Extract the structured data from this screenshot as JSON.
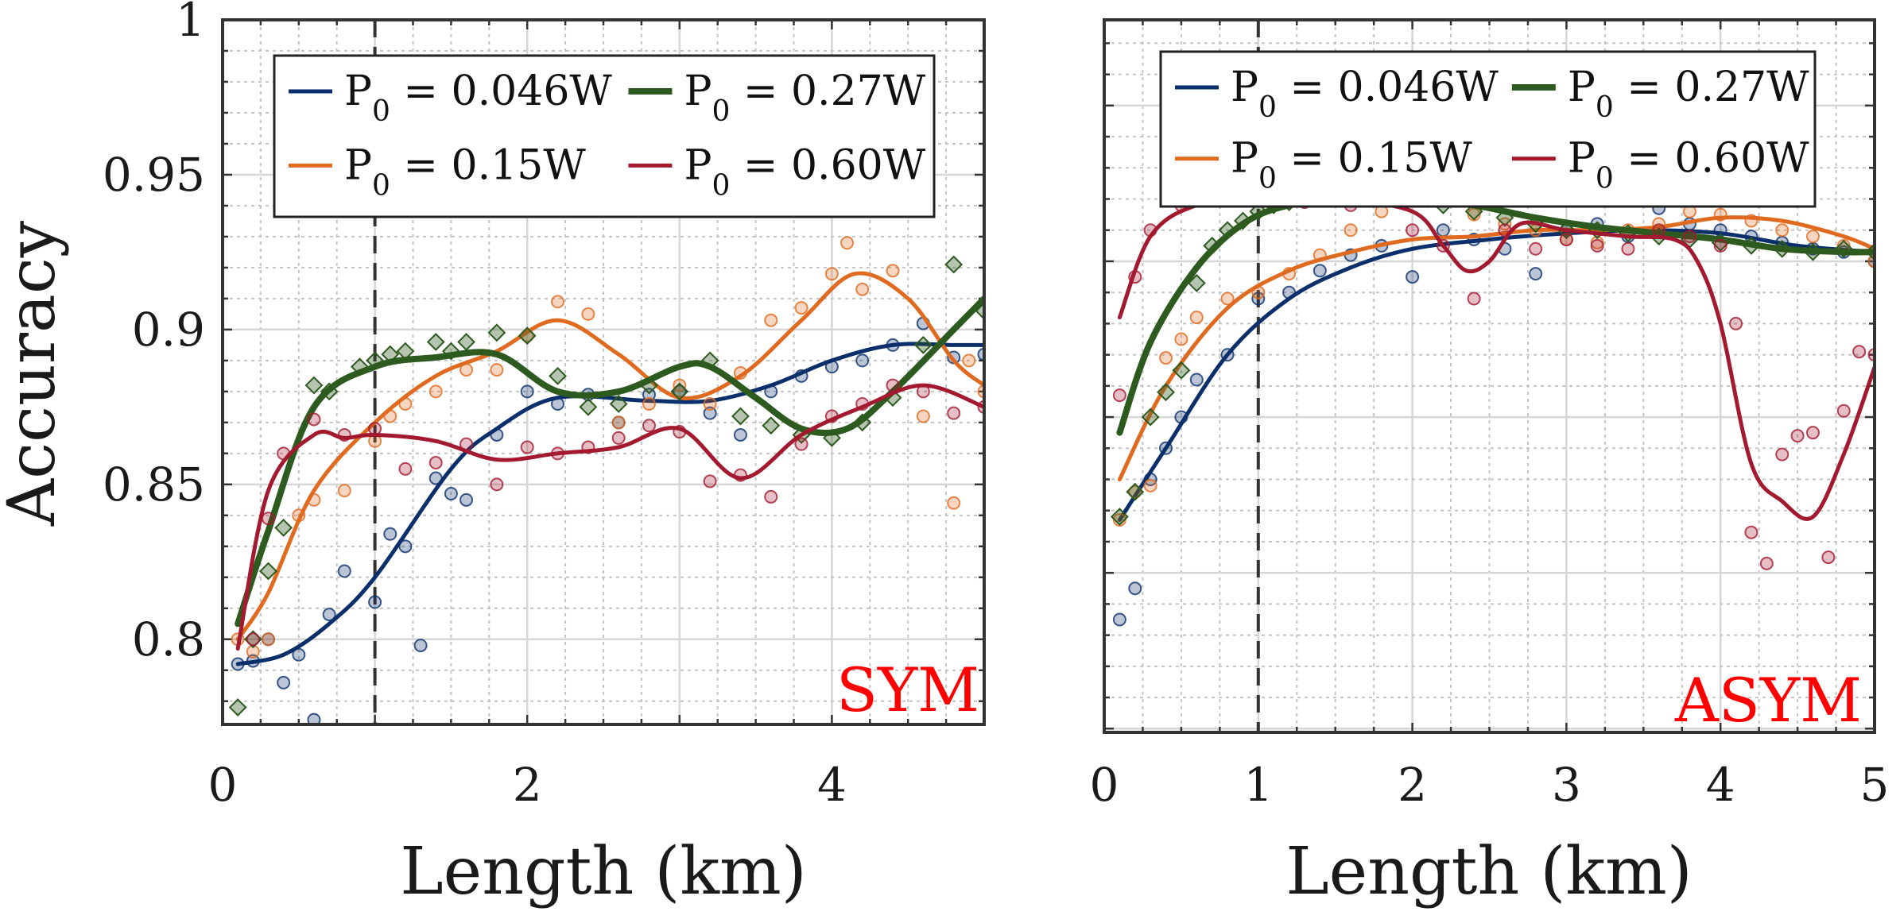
{
  "chart_data": [
    {
      "type": "line",
      "panel_label": "SYM",
      "xlabel": "Length (km)",
      "ylabel": "Accuracy",
      "xlim": [
        0,
        5
      ],
      "ylim": [
        0.77,
        1.0
      ],
      "x_ticks": [
        "0",
        "2",
        "4"
      ],
      "y_ticks": [
        "0.8",
        "0.85",
        "0.9",
        "0.95",
        "1"
      ],
      "grid": true,
      "minor_grid": true,
      "reference_line_x": 1,
      "legend_position": "top",
      "series": [
        {
          "name": "0.046W",
          "color": "#0b2f6b",
          "marker": "circle",
          "fit_x": [
            0.1,
            0.4,
            0.7,
            1.0,
            1.5,
            1.8,
            2.2,
            2.8,
            3.2,
            3.6,
            4.0,
            4.4,
            4.8,
            5.0
          ],
          "fit_y": [
            0.792,
            0.795,
            0.805,
            0.82,
            0.855,
            0.868,
            0.878,
            0.877,
            0.877,
            0.882,
            0.89,
            0.895,
            0.895,
            0.895
          ],
          "points_x": [
            0.1,
            0.2,
            0.3,
            0.4,
            0.5,
            0.6,
            0.7,
            0.8,
            1.0,
            1.1,
            1.2,
            1.3,
            1.4,
            1.5,
            1.6,
            1.8,
            2.0,
            2.2,
            2.4,
            2.6,
            2.8,
            3.0,
            3.2,
            3.4,
            3.6,
            3.8,
            4.0,
            4.2,
            4.4,
            4.6,
            4.8,
            5.0
          ],
          "points_y": [
            0.792,
            0.793,
            0.8,
            0.786,
            0.795,
            0.774,
            0.808,
            0.822,
            0.812,
            0.834,
            0.83,
            0.798,
            0.852,
            0.847,
            0.845,
            0.866,
            0.88,
            0.876,
            0.879,
            0.87,
            0.879,
            0.88,
            0.873,
            0.866,
            0.88,
            0.885,
            0.888,
            0.89,
            0.895,
            0.902,
            0.891,
            0.892
          ]
        },
        {
          "name": "0.15W",
          "color": "#e06a1f",
          "marker": "circle",
          "fit_x": [
            0.1,
            0.3,
            0.6,
            1.0,
            1.4,
            1.8,
            2.2,
            2.6,
            3.0,
            3.4,
            3.8,
            4.15,
            4.5,
            4.8,
            5.0
          ],
          "fit_y": [
            0.8,
            0.815,
            0.848,
            0.87,
            0.885,
            0.893,
            0.903,
            0.892,
            0.878,
            0.885,
            0.903,
            0.918,
            0.91,
            0.89,
            0.882
          ],
          "points_x": [
            0.1,
            0.2,
            0.3,
            0.5,
            0.6,
            0.8,
            1.0,
            1.1,
            1.2,
            1.4,
            1.6,
            1.8,
            2.0,
            2.2,
            2.4,
            2.6,
            2.8,
            3.0,
            3.2,
            3.4,
            3.6,
            3.8,
            4.0,
            4.1,
            4.2,
            4.4,
            4.6,
            4.8,
            4.9,
            5.0
          ],
          "points_y": [
            0.8,
            0.796,
            0.8,
            0.84,
            0.845,
            0.848,
            0.864,
            0.872,
            0.876,
            0.88,
            0.887,
            0.887,
            0.898,
            0.909,
            0.905,
            0.87,
            0.876,
            0.882,
            0.876,
            0.886,
            0.903,
            0.907,
            0.918,
            0.928,
            0.913,
            0.919,
            0.872,
            0.844,
            0.89,
            0.88
          ]
        },
        {
          "name": "0.27W",
          "color": "#2d5a1e",
          "marker": "diamond",
          "fit_x": [
            0.1,
            0.3,
            0.6,
            1.0,
            1.4,
            1.8,
            2.2,
            2.6,
            3.0,
            3.2,
            3.5,
            3.8,
            4.1,
            4.4,
            4.8,
            5.0
          ],
          "fit_y": [
            0.805,
            0.835,
            0.875,
            0.888,
            0.891,
            0.892,
            0.88,
            0.88,
            0.888,
            0.888,
            0.878,
            0.868,
            0.868,
            0.88,
            0.9,
            0.91
          ],
          "points_x": [
            0.1,
            0.2,
            0.3,
            0.4,
            0.6,
            0.7,
            0.9,
            1.0,
            1.1,
            1.2,
            1.4,
            1.5,
            1.6,
            1.8,
            2.0,
            2.2,
            2.4,
            2.6,
            2.8,
            3.0,
            3.2,
            3.4,
            3.6,
            3.8,
            4.0,
            4.2,
            4.4,
            4.6,
            4.8,
            5.0
          ],
          "points_y": [
            0.778,
            0.8,
            0.822,
            0.836,
            0.882,
            0.88,
            0.888,
            0.89,
            0.892,
            0.893,
            0.896,
            0.893,
            0.896,
            0.899,
            0.898,
            0.885,
            0.875,
            0.876,
            0.882,
            0.88,
            0.89,
            0.872,
            0.869,
            0.866,
            0.865,
            0.87,
            0.878,
            0.895,
            0.921,
            0.906
          ]
        },
        {
          "name": "0.60W",
          "color": "#a3192f",
          "marker": "circle",
          "fit_x": [
            0.1,
            0.3,
            0.6,
            0.8,
            1.0,
            1.4,
            1.8,
            2.2,
            2.6,
            3.0,
            3.4,
            3.8,
            4.2,
            4.6,
            5.0
          ],
          "fit_y": [
            0.797,
            0.848,
            0.866,
            0.865,
            0.866,
            0.864,
            0.858,
            0.86,
            0.862,
            0.868,
            0.852,
            0.866,
            0.875,
            0.882,
            0.875
          ],
          "points_x": [
            0.1,
            0.2,
            0.3,
            0.4,
            0.6,
            0.8,
            1.0,
            1.2,
            1.4,
            1.6,
            1.8,
            2.0,
            2.2,
            2.4,
            2.6,
            2.8,
            3.0,
            3.2,
            3.4,
            3.6,
            3.8,
            4.0,
            4.2,
            4.4,
            4.6,
            4.8,
            5.0
          ],
          "points_y": [
            0.77,
            0.8,
            0.839,
            0.86,
            0.871,
            0.866,
            0.868,
            0.855,
            0.857,
            0.863,
            0.85,
            0.862,
            0.86,
            0.862,
            0.865,
            0.869,
            0.867,
            0.851,
            0.853,
            0.846,
            0.863,
            0.872,
            0.876,
            0.882,
            0.88,
            0.873,
            0.875
          ]
        }
      ]
    },
    {
      "type": "line",
      "panel_label": "ASYM",
      "xlabel": "Length (km)",
      "ylabel": "",
      "xlim": [
        0,
        5
      ],
      "ylim": [
        0.77,
        1.0
      ],
      "x_ticks": [
        "0",
        "1",
        "2",
        "3",
        "4",
        "5"
      ],
      "y_ticks": [],
      "grid": true,
      "minor_grid": true,
      "reference_line_x": 1,
      "legend_position": "top",
      "series": [
        {
          "name": "0.046W",
          "color": "#0b2f6b",
          "marker": "circle",
          "fit_x": [
            0.1,
            0.4,
            0.8,
            1.2,
            1.6,
            2.0,
            2.5,
            3.0,
            3.5,
            4.0,
            4.5,
            5.0
          ],
          "fit_y": [
            0.817,
            0.84,
            0.87,
            0.888,
            0.898,
            0.904,
            0.907,
            0.909,
            0.91,
            0.909,
            0.905,
            0.903
          ],
          "points_x": [
            0.1,
            0.2,
            0.3,
            0.4,
            0.5,
            0.6,
            0.8,
            1.0,
            1.2,
            1.4,
            1.6,
            1.8,
            2.0,
            2.2,
            2.4,
            2.6,
            2.8,
            3.0,
            3.2,
            3.4,
            3.6,
            3.8,
            4.0,
            4.2,
            4.4,
            4.6,
            4.8,
            5.0
          ],
          "points_y": [
            0.785,
            0.795,
            0.83,
            0.84,
            0.85,
            0.862,
            0.87,
            0.888,
            0.89,
            0.897,
            0.902,
            0.905,
            0.895,
            0.91,
            0.907,
            0.904,
            0.896,
            0.91,
            0.912,
            0.908,
            0.917,
            0.912,
            0.91,
            0.908,
            0.906,
            0.904,
            0.903,
            0.9
          ]
        },
        {
          "name": "0.15W",
          "color": "#e06a1f",
          "marker": "circle",
          "fit_x": [
            0.1,
            0.4,
            0.8,
            1.2,
            1.6,
            2.0,
            2.4,
            2.8,
            3.2,
            3.6,
            4.0,
            4.4,
            4.8,
            5.0
          ],
          "fit_y": [
            0.83,
            0.86,
            0.885,
            0.897,
            0.903,
            0.907,
            0.908,
            0.91,
            0.91,
            0.911,
            0.914,
            0.913,
            0.908,
            0.904
          ],
          "points_x": [
            0.1,
            0.2,
            0.3,
            0.4,
            0.5,
            0.6,
            0.8,
            1.0,
            1.2,
            1.4,
            1.6,
            1.8,
            2.0,
            2.2,
            2.4,
            2.6,
            2.8,
            3.0,
            3.2,
            3.4,
            3.6,
            3.8,
            4.0,
            4.2,
            4.4,
            4.6,
            4.8,
            5.0
          ],
          "points_y": [
            0.817,
            0.826,
            0.828,
            0.869,
            0.875,
            0.882,
            0.888,
            0.89,
            0.896,
            0.902,
            0.91,
            0.916,
            0.921,
            0.92,
            0.915,
            0.912,
            0.91,
            0.907,
            0.906,
            0.91,
            0.912,
            0.916,
            0.915,
            0.913,
            0.91,
            0.908,
            0.905,
            0.9
          ]
        },
        {
          "name": "0.27W",
          "color": "#2d5a1e",
          "marker": "diamond",
          "fit_x": [
            0.1,
            0.3,
            0.6,
            0.9,
            1.2,
            1.6,
            2.0,
            2.4,
            2.8,
            3.2,
            3.6,
            4.0,
            4.4,
            4.8,
            5.0
          ],
          "fit_y": [
            0.845,
            0.874,
            0.898,
            0.912,
            0.918,
            0.92,
            0.92,
            0.918,
            0.914,
            0.911,
            0.909,
            0.907,
            0.904,
            0.903,
            0.903
          ],
          "points_x": [
            0.1,
            0.2,
            0.3,
            0.4,
            0.5,
            0.6,
            0.7,
            0.8,
            0.9,
            1.0,
            1.1,
            1.2,
            1.3,
            1.4,
            1.5,
            1.6,
            1.7,
            1.8,
            1.9,
            2.0,
            2.1,
            2.2,
            2.4,
            2.6,
            2.8,
            3.0,
            3.2,
            3.4,
            3.6,
            3.8,
            4.0,
            4.2,
            4.4,
            4.6,
            4.8,
            5.0
          ],
          "points_y": [
            0.818,
            0.826,
            0.85,
            0.858,
            0.865,
            0.893,
            0.905,
            0.91,
            0.913,
            0.916,
            0.918,
            0.919,
            0.92,
            0.922,
            0.921,
            0.921,
            0.922,
            0.922,
            0.92,
            0.922,
            0.92,
            0.918,
            0.916,
            0.914,
            0.912,
            0.91,
            0.91,
            0.909,
            0.908,
            0.907,
            0.906,
            0.905,
            0.904,
            0.903,
            0.904,
            0.903
          ]
        },
        {
          "name": "0.60W",
          "color": "#a3192f",
          "marker": "circle",
          "fit_x": [
            0.1,
            0.3,
            0.6,
            1.0,
            1.5,
            2.0,
            2.2,
            2.35,
            2.5,
            2.7,
            3.0,
            3.4,
            3.7,
            3.85,
            4.0,
            4.2,
            4.4,
            4.6,
            4.8,
            5.0
          ],
          "fit_y": [
            0.882,
            0.908,
            0.918,
            0.92,
            0.92,
            0.916,
            0.905,
            0.897,
            0.9,
            0.912,
            0.91,
            0.908,
            0.907,
            0.9,
            0.88,
            0.835,
            0.823,
            0.818,
            0.838,
            0.866
          ],
          "points_x": [
            0.1,
            0.2,
            0.3,
            0.5,
            0.7,
            1.0,
            1.3,
            1.6,
            2.0,
            2.2,
            2.4,
            2.6,
            2.8,
            3.0,
            3.2,
            3.4,
            3.6,
            3.8,
            4.0,
            4.1,
            4.2,
            4.3,
            4.4,
            4.5,
            4.6,
            4.7,
            4.8,
            4.9,
            5.0
          ],
          "points_y": [
            0.857,
            0.895,
            0.91,
            0.918,
            0.92,
            0.92,
            0.919,
            0.918,
            0.91,
            0.905,
            0.888,
            0.91,
            0.904,
            0.907,
            0.905,
            0.904,
            0.91,
            0.908,
            0.905,
            0.88,
            0.813,
            0.803,
            0.838,
            0.844,
            0.845,
            0.805,
            0.852,
            0.871,
            0.87
          ]
        }
      ]
    }
  ]
}
